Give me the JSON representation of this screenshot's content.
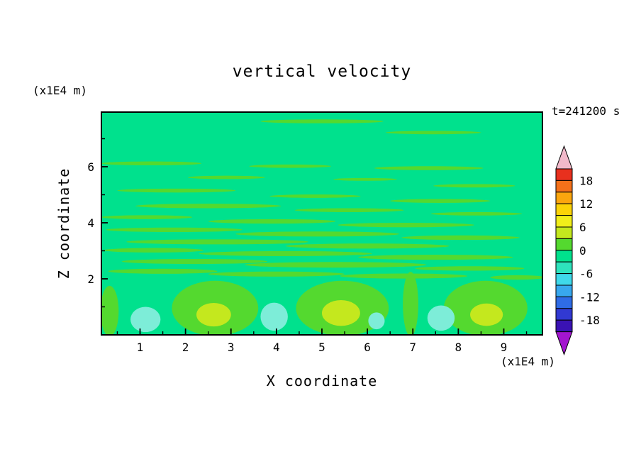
{
  "chart_data": {
    "type": "heatmap",
    "title": "vertical velocity",
    "time_label": "t=241200 s",
    "xlabel": "X coordinate",
    "ylabel": "Z coordinate",
    "x_unit_label": "(x1E4 m)",
    "y_unit_label": "(x1E4 m)",
    "x_range": [
      0.15,
      9.85
    ],
    "y_range": [
      0,
      7.95
    ],
    "x_major_ticks": [
      1,
      2,
      3,
      4,
      5,
      6,
      7,
      8,
      9
    ],
    "x_minor_ticks": [
      0.5,
      1.5,
      2.5,
      3.5,
      4.5,
      5.5,
      6.5,
      7.5,
      8.5,
      9.5
    ],
    "y_major_ticks": [
      2,
      4,
      6
    ],
    "y_minor_ticks": [
      1,
      3,
      5,
      7
    ],
    "grid": false,
    "colorbar": {
      "position": "right",
      "labels": [
        18,
        12,
        6,
        0,
        -6,
        -12,
        -18
      ],
      "level_min": -21,
      "level_max": 21,
      "level_step": 3,
      "box_colors_top_to_bottom": [
        "#e8301e",
        "#f4711a",
        "#fba60e",
        "#fbd307",
        "#f1ee1a",
        "#c4e81e",
        "#54d92f",
        "#00e18d",
        "#2ee3bd",
        "#3fd9ea",
        "#38a8ee",
        "#2f6ce6",
        "#3139d2",
        "#3a12b4"
      ],
      "arrow_top_color": "#f2b9ca",
      "arrow_bottom_color": "#a315cf"
    },
    "field": {
      "background_color": "#00e18d",
      "streak_color": "#54d92f",
      "streaks": [
        {
          "x": 5.0,
          "z": 7.62,
          "rx": 1.35,
          "rz": 0.07
        },
        {
          "x": 7.45,
          "z": 7.22,
          "rx": 1.05,
          "rz": 0.06
        },
        {
          "x": 1.25,
          "z": 6.12,
          "rx": 1.1,
          "rz": 0.07
        },
        {
          "x": 4.3,
          "z": 6.02,
          "rx": 0.9,
          "rz": 0.06
        },
        {
          "x": 7.35,
          "z": 5.95,
          "rx": 1.2,
          "rz": 0.07
        },
        {
          "x": 2.9,
          "z": 5.62,
          "rx": 0.85,
          "rz": 0.06
        },
        {
          "x": 5.95,
          "z": 5.55,
          "rx": 0.7,
          "rz": 0.05
        },
        {
          "x": 8.35,
          "z": 5.32,
          "rx": 0.9,
          "rz": 0.06
        },
        {
          "x": 1.8,
          "z": 5.15,
          "rx": 1.3,
          "rz": 0.07
        },
        {
          "x": 4.85,
          "z": 4.95,
          "rx": 1.0,
          "rz": 0.06
        },
        {
          "x": 7.6,
          "z": 4.78,
          "rx": 1.1,
          "rz": 0.07
        },
        {
          "x": 2.5,
          "z": 4.6,
          "rx": 1.6,
          "rz": 0.08
        },
        {
          "x": 5.6,
          "z": 4.45,
          "rx": 1.2,
          "rz": 0.07
        },
        {
          "x": 8.4,
          "z": 4.32,
          "rx": 1.0,
          "rz": 0.06
        },
        {
          "x": 1.15,
          "z": 4.2,
          "rx": 1.0,
          "rz": 0.07
        },
        {
          "x": 3.9,
          "z": 4.05,
          "rx": 1.4,
          "rz": 0.08
        },
        {
          "x": 6.85,
          "z": 3.92,
          "rx": 1.5,
          "rz": 0.08
        },
        {
          "x": 1.75,
          "z": 3.75,
          "rx": 1.5,
          "rz": 0.08
        },
        {
          "x": 4.9,
          "z": 3.6,
          "rx": 1.8,
          "rz": 0.09
        },
        {
          "x": 8.05,
          "z": 3.47,
          "rx": 1.3,
          "rz": 0.08
        },
        {
          "x": 2.7,
          "z": 3.32,
          "rx": 2.0,
          "rz": 0.09
        },
        {
          "x": 6.0,
          "z": 3.17,
          "rx": 1.8,
          "rz": 0.09
        },
        {
          "x": 1.3,
          "z": 3.02,
          "rx": 1.1,
          "rz": 0.08
        },
        {
          "x": 4.2,
          "z": 2.9,
          "rx": 1.9,
          "rz": 0.09
        },
        {
          "x": 7.5,
          "z": 2.77,
          "rx": 1.7,
          "rz": 0.09
        },
        {
          "x": 2.2,
          "z": 2.62,
          "rx": 1.6,
          "rz": 0.09
        },
        {
          "x": 5.3,
          "z": 2.5,
          "rx": 2.0,
          "rz": 0.1
        },
        {
          "x": 8.25,
          "z": 2.37,
          "rx": 1.2,
          "rz": 0.08
        },
        {
          "x": 1.5,
          "z": 2.27,
          "rx": 1.2,
          "rz": 0.09
        },
        {
          "x": 4.0,
          "z": 2.17,
          "rx": 1.5,
          "rz": 0.09
        },
        {
          "x": 6.8,
          "z": 2.1,
          "rx": 1.4,
          "rz": 0.09
        },
        {
          "x": 9.3,
          "z": 2.05,
          "rx": 0.6,
          "rz": 0.08
        }
      ],
      "cells": [
        {
          "name": "updraft-cell",
          "x": 2.65,
          "z": 0.95,
          "rx": 0.95,
          "rz": 0.98,
          "color": "#54d92f"
        },
        {
          "name": "updraft-cell",
          "x": 5.45,
          "z": 0.95,
          "rx": 1.02,
          "rz": 0.98,
          "color": "#54d92f"
        },
        {
          "name": "updraft-cell",
          "x": 8.6,
          "z": 0.95,
          "rx": 0.92,
          "rz": 0.98,
          "color": "#54d92f"
        },
        {
          "name": "updraft-plume",
          "x": 6.95,
          "z": 1.1,
          "rx": 0.17,
          "rz": 1.15,
          "color": "#54d92f"
        },
        {
          "name": "updraft-plume",
          "x": 0.33,
          "z": 0.85,
          "rx": 0.2,
          "rz": 0.9,
          "color": "#54d92f"
        },
        {
          "name": "updraft-core",
          "x": 2.62,
          "z": 0.72,
          "rx": 0.38,
          "rz": 0.42,
          "color": "#c4e81e"
        },
        {
          "name": "updraft-core",
          "x": 5.42,
          "z": 0.78,
          "rx": 0.42,
          "rz": 0.46,
          "color": "#c4e81e"
        },
        {
          "name": "updraft-core",
          "x": 8.62,
          "z": 0.72,
          "rx": 0.36,
          "rz": 0.4,
          "color": "#c4e81e"
        },
        {
          "name": "downdraft-patch",
          "x": 1.12,
          "z": 0.55,
          "rx": 0.33,
          "rz": 0.45,
          "color": "#7dedd8"
        },
        {
          "name": "downdraft-patch",
          "x": 3.95,
          "z": 0.65,
          "rx": 0.3,
          "rz": 0.5,
          "color": "#7dedd8"
        },
        {
          "name": "downdraft-patch",
          "x": 6.2,
          "z": 0.5,
          "rx": 0.18,
          "rz": 0.3,
          "color": "#7dedd8"
        },
        {
          "name": "downdraft-patch",
          "x": 7.62,
          "z": 0.6,
          "rx": 0.3,
          "rz": 0.45,
          "color": "#7dedd8"
        }
      ]
    }
  }
}
